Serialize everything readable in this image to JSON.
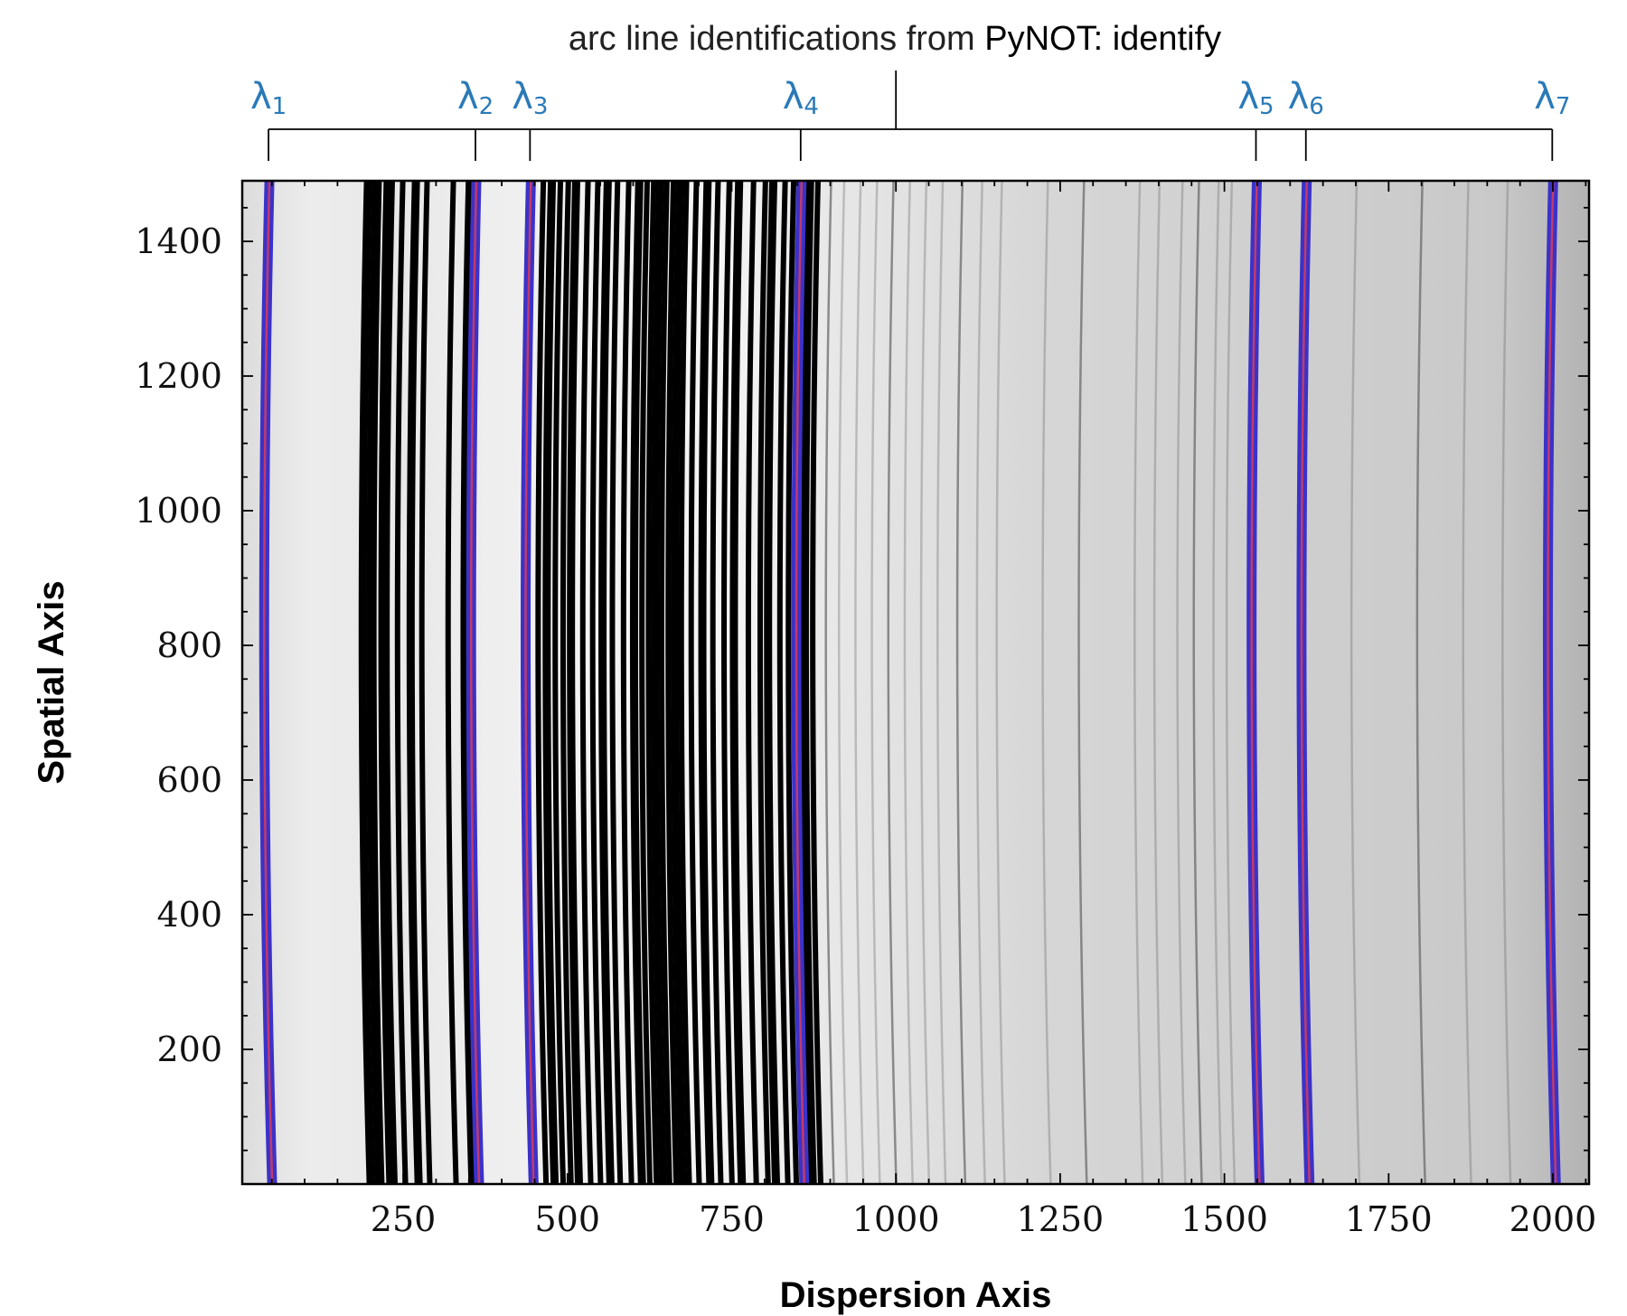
{
  "chart_data": {
    "type": "image",
    "title_prefix": "arc line identifications from ",
    "title_emph": "PyNOT: identify",
    "xlabel": "Dispersion Axis",
    "ylabel": "Spatial Axis",
    "xlim": [
      5,
      2055
    ],
    "ylim": [
      0,
      1490
    ],
    "xticks": [
      250,
      500,
      750,
      1000,
      1250,
      1500,
      1750,
      2000
    ],
    "yticks": [
      200,
      400,
      600,
      800,
      1000,
      1200,
      1400
    ],
    "xminor_step": 50,
    "yminor_step": 50,
    "top_bracket_center": 1000,
    "identified_lines": [
      {
        "symbol": "λ",
        "sub": "1",
        "x": 45
      },
      {
        "symbol": "λ",
        "sub": "2",
        "x": 360
      },
      {
        "symbol": "λ",
        "sub": "3",
        "x": 443
      },
      {
        "symbol": "λ",
        "sub": "4",
        "x": 855
      },
      {
        "symbol": "λ",
        "sub": "5",
        "x": 1548
      },
      {
        "symbol": "λ",
        "sub": "6",
        "x": 1624
      },
      {
        "symbol": "λ",
        "sub": "7",
        "x": 1999
      }
    ],
    "arc_lines_dark": [
      195,
      205,
      212,
      225,
      232,
      248,
      268,
      285,
      325,
      350,
      440,
      462,
      475,
      488,
      500,
      512,
      530,
      545,
      560,
      575,
      592,
      608,
      620,
      630,
      640,
      650,
      660,
      670,
      680,
      695,
      712,
      728,
      745,
      760,
      782,
      800,
      812,
      830,
      843,
      868,
      880
    ],
    "arc_lines_faint": [
      900,
      920,
      945,
      970,
      995,
      1020,
      1045,
      1070,
      1100,
      1130,
      1160,
      1230,
      1285,
      1370,
      1400,
      1435,
      1460,
      1490,
      1510,
      1700,
      1800,
      1870,
      1930
    ],
    "colors": {
      "ident_line_outer": "#3b32c8",
      "ident_line_inner": "#c23a6a",
      "label_color": "#2a7ab8",
      "arc_dark": "#000000",
      "arc_faint": "#6b6b6b"
    }
  }
}
